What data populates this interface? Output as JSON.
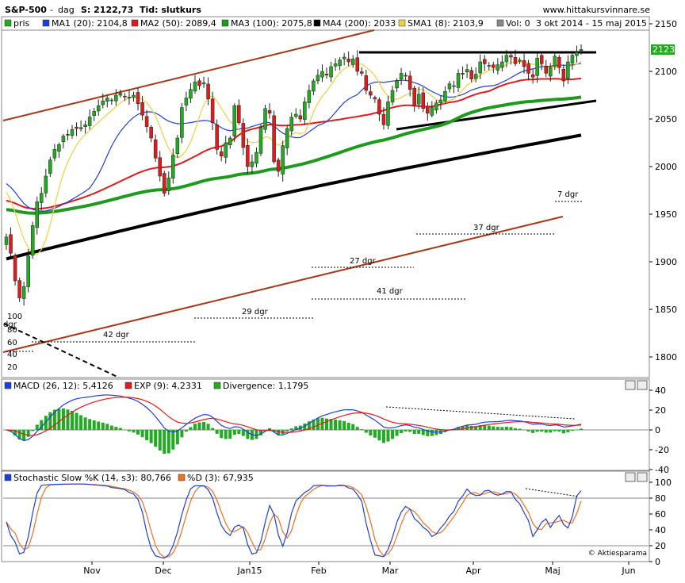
{
  "header": {
    "symbol": "S&P-500",
    "separator": "-",
    "period": "dag",
    "price_label": "S: 2122,73",
    "type_label": "Tid: slutkurs",
    "site": "www.hittakursvinnare.se"
  },
  "legend": [
    {
      "text": "pris",
      "color": "#22aa22"
    },
    {
      "text": "MA1 (20): 2104,8",
      "color": "#1f3fd8"
    },
    {
      "text": "MA2 (50): 2089,4",
      "color": "#e01b1b"
    },
    {
      "text": "MA3 (100): 2075,8",
      "color": "#1e9a1e"
    },
    {
      "text": "MA4 (200): 2033",
      "color": "#000000"
    },
    {
      "text": "SMA1 (8): 2103,9",
      "color": "#f0d040"
    },
    {
      "text": "Vol: 0",
      "color": "#888888"
    },
    {
      "text": "3 okt 2014 - 15 maj 2015",
      "color": ""
    }
  ],
  "price_axis": {
    "ticks": [
      "2150",
      "2100",
      "2050",
      "2000",
      "1950",
      "1900",
      "1850",
      "1800"
    ],
    "last_price": "2123"
  },
  "annotations": {
    "d7": "7 dgr",
    "d37": "37 dgr",
    "d27": "27 dgr",
    "d41": "41 dgr",
    "d29": "29 dgr",
    "d42": "42 dgr",
    "inset_label": "dgr",
    "inset_ticks": [
      "100",
      "80",
      "60",
      "40",
      "20"
    ]
  },
  "macd": {
    "legend": [
      {
        "text": "MACD (26, 12): 5,4126",
        "color": "#1f3fd8"
      },
      {
        "text": "EXP (9): 4,2331",
        "color": "#e01b1b"
      },
      {
        "text": "Divergence: 1,1795",
        "color": "#22aa22"
      }
    ],
    "ticks": [
      "40",
      "20",
      "0",
      "-20",
      "-40"
    ]
  },
  "stoch": {
    "legend": [
      {
        "text": "Stochastic Slow %K (14, s3): 80,766",
        "color": "#1f3fd8"
      },
      {
        "text": "%D (3): 67,935",
        "color": "#f07020"
      }
    ],
    "ticks": [
      "100",
      "80",
      "60",
      "40",
      "20",
      "0"
    ],
    "credit": "© Aktiesparama"
  },
  "x_axis": {
    "months": [
      "Nov",
      "Dec",
      "Jan15",
      "Feb",
      "Mar",
      "Apr",
      "Maj",
      "Jun"
    ]
  },
  "chart_data": {
    "type": "candlestick",
    "period": "3 okt 2014 - 15 maj 2015",
    "ylim": [
      1770,
      2155
    ],
    "closes": [
      1926,
      1909,
      1880,
      1862,
      1874,
      1906,
      1938,
      1963,
      1972,
      1990,
      2007,
      2018,
      2023,
      2032,
      2033,
      2039,
      2040,
      2041,
      2044,
      2052,
      2058,
      2064,
      2069,
      2072,
      2070,
      2075,
      2077,
      2074,
      2073,
      2075,
      2066,
      2054,
      2042,
      2030,
      2009,
      1990,
      1972,
      1988,
      2012,
      2030,
      2062,
      2072,
      2081,
      2089,
      2085,
      2088,
      2071,
      2046,
      2018,
      2011,
      2025,
      2030,
      2064,
      2046,
      2020,
      2000,
      2005,
      2015,
      2041,
      2061,
      2056,
      2005,
      1995,
      2022,
      2040,
      2052,
      2055,
      2050,
      2068,
      2080,
      2090,
      2096,
      2100,
      2096,
      2105,
      2108,
      2112,
      2115,
      2110,
      2113,
      2100,
      2098,
      2080,
      2075,
      2071,
      2055,
      2044,
      2068,
      2080,
      2090,
      2098,
      2095,
      2081,
      2064,
      2076,
      2061,
      2056,
      2062,
      2067,
      2070,
      2079,
      2087,
      2085,
      2098,
      2097,
      2102,
      2092,
      2097,
      2110,
      2108,
      2106,
      2104,
      2107,
      2110,
      2117,
      2115,
      2108,
      2112,
      2105,
      2098,
      2094,
      2114,
      2108,
      2098,
      2104,
      2116,
      2104,
      2090,
      2110,
      2117,
      2120,
      2123
    ]
  }
}
